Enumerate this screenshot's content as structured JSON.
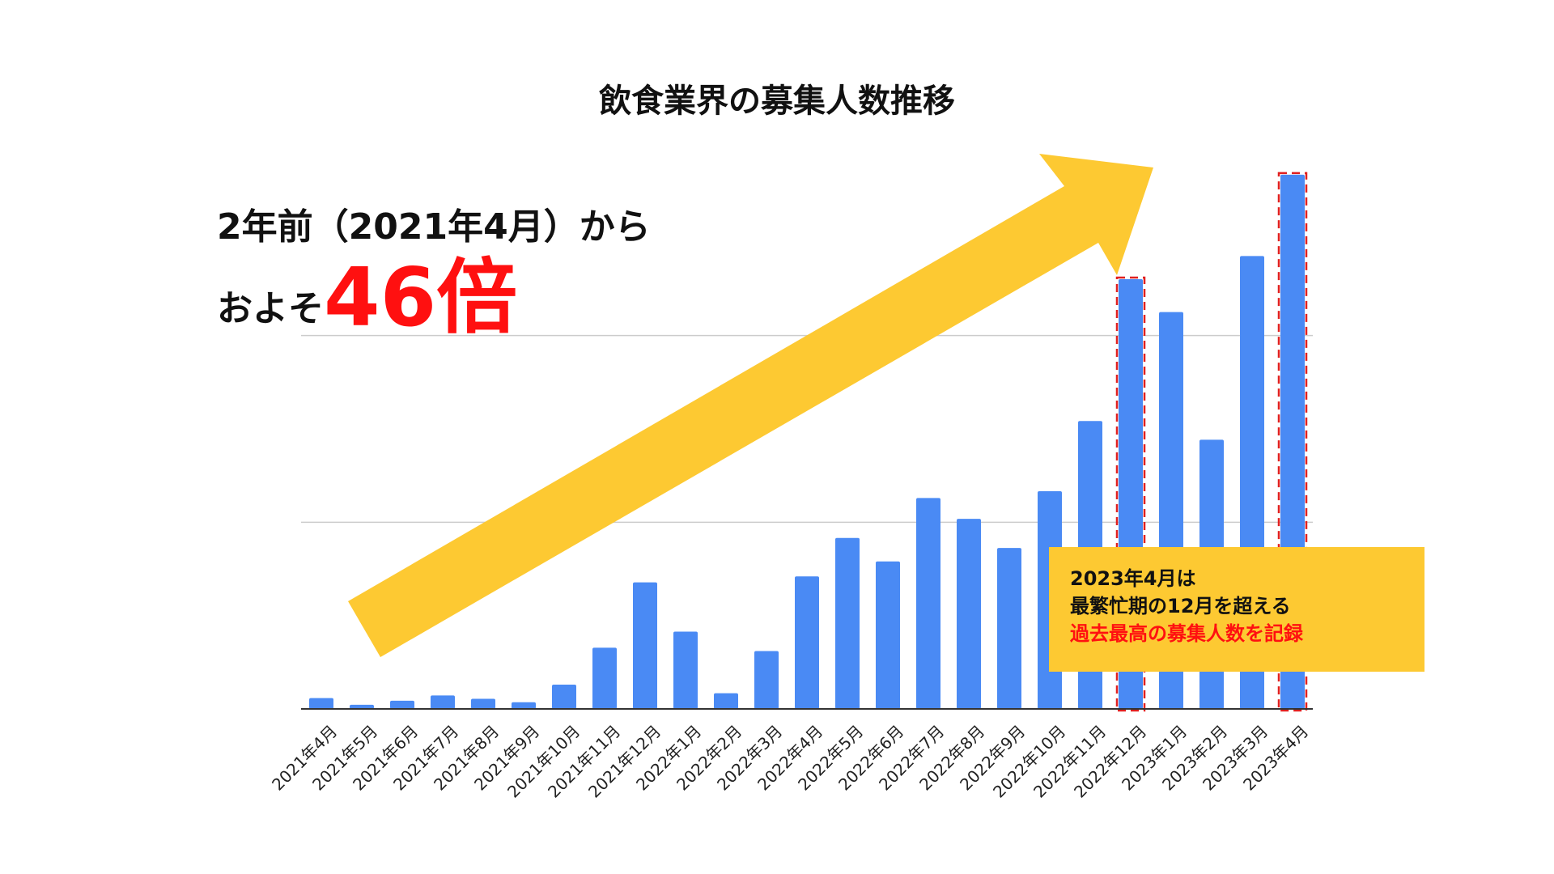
{
  "title": "飲食業界の募集人数推移",
  "headline": {
    "line1": "2年前（2021年4月）から",
    "line2_prefix": "およそ",
    "line2_emphasis": "46倍"
  },
  "callout": {
    "line1": "2023年4月は",
    "line2": "最繁忙期の12月を超える",
    "line3": "過去最高の募集人数を記録"
  },
  "colors": {
    "bar": "#4a8af4",
    "arrow": "#fdc932",
    "highlight_border": "#e02020",
    "emphasis_text": "#ff1010",
    "gridline": "#cccccc"
  },
  "chart_data": {
    "type": "bar",
    "title": "飲食業界の募集人数推移",
    "xlabel": "",
    "ylabel": "",
    "categories": [
      "2021年4月",
      "2021年5月",
      "2021年6月",
      "2021年7月",
      "2021年8月",
      "2021年9月",
      "2021年10月",
      "2021年11月",
      "2021年12月",
      "2022年1月",
      "2022年2月",
      "2022年3月",
      "2022年4月",
      "2022年5月",
      "2022年6月",
      "2022年7月",
      "2022年8月",
      "2022年9月",
      "2022年10月",
      "2022年11月",
      "2022年12月",
      "2023年1月",
      "2023年2月",
      "2023年3月",
      "2023年4月"
    ],
    "values": [
      2.9,
      1.1,
      2.2,
      3.6,
      2.7,
      1.8,
      6.5,
      16.4,
      33.9,
      20.7,
      4.2,
      15.5,
      35.5,
      45.8,
      39.5,
      56.5,
      50.9,
      43.1,
      58.3,
      77.1,
      115.1,
      106.3,
      72.1,
      121.3,
      143.1
    ],
    "ylim": [
      0,
      150
    ],
    "gridlines": [
      50,
      100
    ],
    "y_tick_labels_visible": false,
    "highlighted": [
      "2022年12月",
      "2023年4月"
    ]
  }
}
